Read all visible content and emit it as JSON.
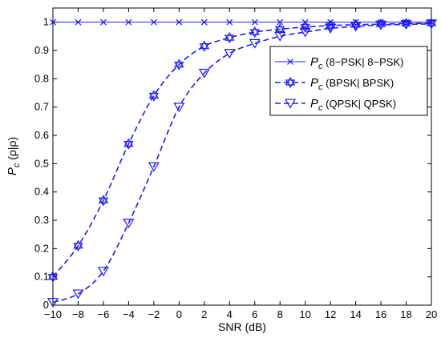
{
  "chart_data": {
    "type": "line",
    "xlabel": "SNR (dB)",
    "ylabel_main": "P",
    "ylabel_sub": "c",
    "ylabel_tail": " (ρ|ρ)",
    "xlim": [
      -10,
      20
    ],
    "ylim": [
      0,
      1.05
    ],
    "xticks": [
      -10,
      -8,
      -6,
      -4,
      -2,
      0,
      2,
      4,
      6,
      8,
      10,
      12,
      14,
      16,
      18,
      20
    ],
    "yticks": [
      0,
      0.1,
      0.2,
      0.3,
      0.4,
      0.5,
      0.6,
      0.7,
      0.8,
      0.9,
      1
    ],
    "ytick_labels": [
      "0",
      "0.1",
      "0.2",
      "0.3",
      "0.4",
      "0.5",
      "0.6",
      "0.7",
      "0.8",
      "0.9",
      "1"
    ],
    "x": [
      -10,
      -8,
      -6,
      -4,
      -2,
      0,
      2,
      4,
      6,
      8,
      10,
      12,
      14,
      16,
      18,
      20
    ],
    "grid": false,
    "legend_position": "top-right",
    "color": "#1a1aff",
    "series": [
      {
        "name": "8−PSK| 8−PSK",
        "marker": "x",
        "dash": "solid",
        "values": [
          1,
          1,
          1,
          1,
          1,
          1,
          1,
          1,
          1,
          1,
          1,
          1,
          1,
          1,
          1,
          1
        ]
      },
      {
        "name": "BPSK| BPSK",
        "marker": "hexagram",
        "dash": "dashed",
        "values": [
          0.1,
          0.21,
          0.37,
          0.57,
          0.74,
          0.85,
          0.915,
          0.945,
          0.965,
          0.975,
          0.983,
          0.988,
          0.991,
          0.993,
          0.995,
          0.996
        ]
      },
      {
        "name": "QPSK| QPSK",
        "marker": "triangle-down",
        "dash": "dashed",
        "values": [
          0.01,
          0.04,
          0.12,
          0.29,
          0.49,
          0.7,
          0.82,
          0.89,
          0.925,
          0.95,
          0.965,
          0.978,
          0.985,
          0.99,
          0.992,
          0.994
        ]
      }
    ],
    "legend_prefix": "P",
    "legend_sub": "c"
  }
}
